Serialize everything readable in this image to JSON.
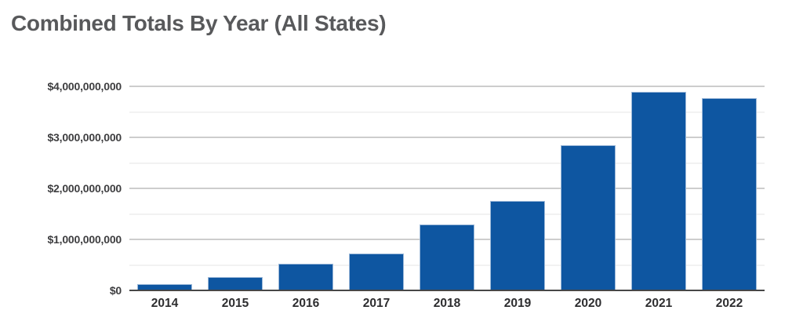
{
  "chart_data": {
    "type": "bar",
    "title": "Combined Totals By Year (All States)",
    "categories": [
      "2014",
      "2015",
      "2016",
      "2017",
      "2018",
      "2019",
      "2020",
      "2021",
      "2022"
    ],
    "values": [
      120000000,
      260000000,
      525000000,
      725000000,
      1290000000,
      1750000000,
      2850000000,
      3890000000,
      3770000000
    ],
    "xlabel": "",
    "ylabel": "",
    "ylim": [
      0,
      4000000000
    ],
    "y_tick_labels": [
      "$4,000,000,000",
      "$3,000,000,000",
      "$2,000,000,000",
      "$1,000,000,000",
      "$0"
    ],
    "y_tick_values": [
      4000000000,
      3000000000,
      2000000000,
      1000000000,
      0
    ],
    "minor_gridline_values": [
      3500000000,
      2500000000,
      1500000000,
      500000000
    ],
    "grid": true,
    "legend": "none",
    "colors": {
      "bar_fill": "#0e56a1",
      "bar_stroke": "#9db9d9",
      "major_gridline": "#cdcdcd",
      "minor_gridline": "#f2f2f2",
      "axis_baseline": "#474747",
      "title_text": "#58595b",
      "y_tick_text": "#3e3e40",
      "x_tick_text": "#2d2d2f"
    }
  }
}
